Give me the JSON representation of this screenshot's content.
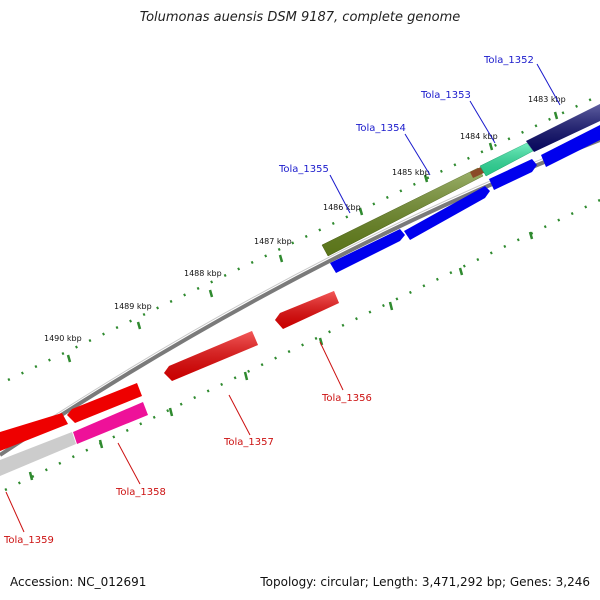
{
  "title": "Tolumonas auensis DSM 9187, complete genome",
  "footer": {
    "accession": "Accession: NC_012691",
    "summary": "Topology: circular; Length: 3,471,292 bp; Genes: 3,246"
  },
  "colors": {
    "backbone": "#7a7a7a",
    "tick": "#2f8a2f",
    "forward_label": "#1a1acc",
    "reverse_label": "#cc1111"
  },
  "ruler": [
    {
      "label": "1483 kbp"
    },
    {
      "label": "1484 kbp"
    },
    {
      "label": "1485 kbp"
    },
    {
      "label": "1486 kbp"
    },
    {
      "label": "1487 kbp"
    },
    {
      "label": "1488 kbp"
    },
    {
      "label": "1489 kbp"
    },
    {
      "label": "1490 kbp"
    }
  ],
  "genes": [
    {
      "name": "Tola_1352",
      "strand": "forward",
      "color": "#0a0a6e"
    },
    {
      "name": "Tola_1353",
      "strand": "forward",
      "color": "#2de8a0"
    },
    {
      "name": "Tola_1354",
      "strand": "forward",
      "color": "#8a4a28"
    },
    {
      "name": "Tola_1355",
      "strand": "forward",
      "color": "#6b8a1e"
    },
    {
      "name": "Tola_1356",
      "strand": "reverse",
      "color": "#ee0000"
    },
    {
      "name": "Tola_1357",
      "strand": "reverse",
      "color": "#ee0000"
    },
    {
      "name": "Tola_1358",
      "strand": "reverse",
      "color": "#ee1199"
    },
    {
      "name": "Tola_1359",
      "strand": "reverse",
      "color": "#cccccc"
    }
  ]
}
